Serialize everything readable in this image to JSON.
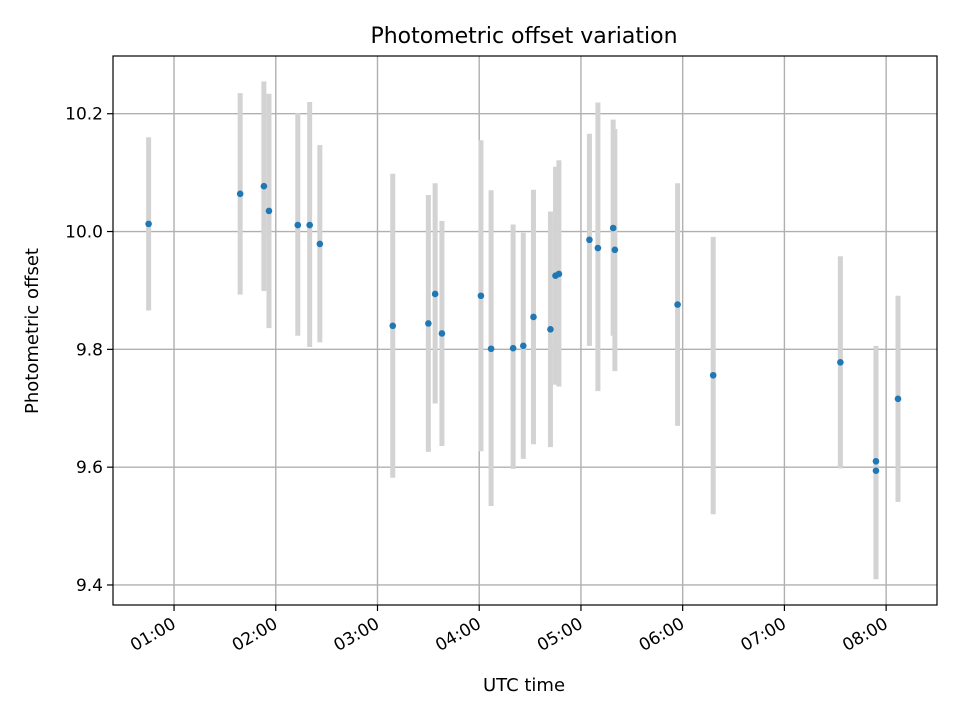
{
  "chart_data": {
    "type": "scatter",
    "title": "Photometric offset variation",
    "xlabel": "UTC time",
    "ylabel": "Photometric offset",
    "x_unit": "UTC time (HH:MM)",
    "xlim": [
      "00:24",
      "08:30"
    ],
    "ylim": [
      9.366,
      10.298
    ],
    "x_ticks": [
      "01:00",
      "02:00",
      "03:00",
      "04:00",
      "05:00",
      "06:00",
      "07:00",
      "08:00"
    ],
    "y_ticks": [
      9.4,
      9.6,
      9.8,
      10.0,
      10.2
    ],
    "y_tick_labels": [
      "9.4",
      "9.6",
      "9.8",
      "10.0",
      "10.2"
    ],
    "grid": true,
    "x_tick_rotation_deg": 30,
    "colors": {
      "point": "#1f77b4",
      "errorbar": "#d3d3d3",
      "grid": "#b0b0b0"
    },
    "points": [
      {
        "x": "00:45",
        "y": 10.013,
        "y_low": 9.866,
        "y_high": 10.16
      },
      {
        "x": "01:39",
        "y": 10.064,
        "y_low": 9.893,
        "y_high": 10.235
      },
      {
        "x": "01:53",
        "y": 10.077,
        "y_low": 9.899,
        "y_high": 10.255
      },
      {
        "x": "01:56",
        "y": 10.035,
        "y_low": 9.836,
        "y_high": 10.234
      },
      {
        "x": "02:13",
        "y": 10.011,
        "y_low": 9.823,
        "y_high": 10.201
      },
      {
        "x": "02:20",
        "y": 10.011,
        "y_low": 9.804,
        "y_high": 10.22
      },
      {
        "x": "02:26",
        "y": 9.979,
        "y_low": 9.812,
        "y_high": 10.147
      },
      {
        "x": "03:09",
        "y": 9.84,
        "y_low": 9.582,
        "y_high": 10.098
      },
      {
        "x": "03:30",
        "y": 9.844,
        "y_low": 9.626,
        "y_high": 10.062
      },
      {
        "x": "03:34",
        "y": 9.894,
        "y_low": 9.708,
        "y_high": 10.082
      },
      {
        "x": "03:38",
        "y": 9.827,
        "y_low": 9.636,
        "y_high": 10.018
      },
      {
        "x": "04:01",
        "y": 9.891,
        "y_low": 9.627,
        "y_high": 10.155
      },
      {
        "x": "04:07",
        "y": 9.801,
        "y_low": 9.534,
        "y_high": 10.07
      },
      {
        "x": "04:20",
        "y": 9.802,
        "y_low": 9.597,
        "y_high": 10.012
      },
      {
        "x": "04:26",
        "y": 9.806,
        "y_low": 9.614,
        "y_high": 9.998
      },
      {
        "x": "04:32",
        "y": 9.855,
        "y_low": 9.639,
        "y_high": 10.071
      },
      {
        "x": "04:42",
        "y": 9.834,
        "y_low": 9.634,
        "y_high": 10.034
      },
      {
        "x": "04:45",
        "y": 9.925,
        "y_low": 9.74,
        "y_high": 10.11
      },
      {
        "x": "04:47",
        "y": 9.928,
        "y_low": 9.737,
        "y_high": 10.121
      },
      {
        "x": "05:05",
        "y": 9.986,
        "y_low": 9.806,
        "y_high": 10.166
      },
      {
        "x": "05:10",
        "y": 9.972,
        "y_low": 9.729,
        "y_high": 10.219
      },
      {
        "x": "05:19",
        "y": 10.006,
        "y_low": 9.823,
        "y_high": 10.19
      },
      {
        "x": "05:20",
        "y": 9.969,
        "y_low": 9.763,
        "y_high": 10.174
      },
      {
        "x": "05:57",
        "y": 9.876,
        "y_low": 9.67,
        "y_high": 10.082
      },
      {
        "x": "06:18",
        "y": 9.756,
        "y_low": 9.52,
        "y_high": 9.991
      },
      {
        "x": "07:33",
        "y": 9.778,
        "y_low": 9.598,
        "y_high": 9.958
      },
      {
        "x": "07:54",
        "y": 9.61,
        "y_low": 9.41,
        "y_high": 9.806
      },
      {
        "x": "07:54",
        "y": 9.594,
        "y_low": 9.41,
        "y_high": 9.778
      },
      {
        "x": "08:07",
        "y": 9.716,
        "y_low": 9.541,
        "y_high": 9.891
      }
    ]
  }
}
